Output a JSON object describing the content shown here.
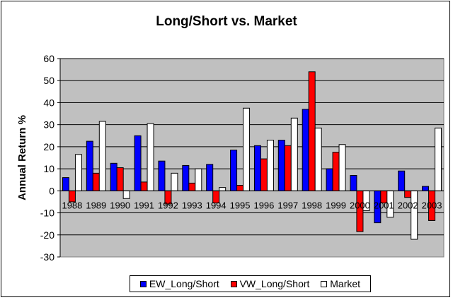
{
  "chart_data": {
    "type": "bar",
    "title": "Long/Short vs. Market",
    "xlabel": "",
    "ylabel": "Annual Return %",
    "ylim": [
      -30,
      60
    ],
    "yticks": [
      -30,
      -20,
      -10,
      0,
      10,
      20,
      30,
      40,
      50,
      60
    ],
    "grid": true,
    "legend_position": "bottom",
    "categories": [
      "1988",
      "1989",
      "1990",
      "1991",
      "1992",
      "1993",
      "1994",
      "1995",
      "1996",
      "1997",
      "1998",
      "1999",
      "2000",
      "2001",
      "2002",
      "2003"
    ],
    "series": [
      {
        "name": "EW_Long/Short",
        "color": "#0000ff",
        "values": [
          6,
          22.5,
          12.5,
          25,
          13.5,
          11.5,
          12,
          18.5,
          20.5,
          23,
          37,
          10,
          7,
          -14.5,
          9,
          2
        ]
      },
      {
        "name": "VW_Long/Short",
        "color": "#ff0000",
        "values": [
          -5,
          8,
          10.5,
          4,
          -6,
          3.5,
          -5.5,
          2.5,
          14.5,
          20.5,
          54,
          17.5,
          -18.5,
          -5.5,
          -3,
          -13.5
        ]
      },
      {
        "name": "Market",
        "color": "#ffffff",
        "values": [
          16.5,
          31.5,
          -3.5,
          30.5,
          8,
          10,
          1.5,
          37.5,
          23,
          33,
          28.5,
          21,
          -9,
          -12,
          -22,
          28.5
        ]
      }
    ],
    "plot_background": "#c0c0c0"
  }
}
